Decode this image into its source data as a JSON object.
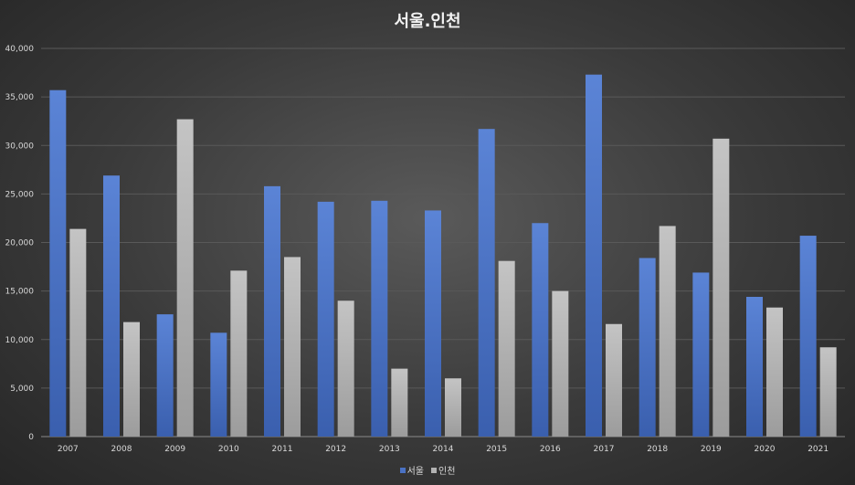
{
  "chart_data": {
    "type": "bar",
    "title": "서울.인천",
    "categories": [
      "2007",
      "2008",
      "2009",
      "2010",
      "2011",
      "2012",
      "2013",
      "2014",
      "2015",
      "2016",
      "2017",
      "2018",
      "2019",
      "2020",
      "2021"
    ],
    "series": [
      {
        "name": "서울",
        "color": "#4a72c4",
        "values": [
          35700,
          26900,
          12600,
          10700,
          25800,
          24200,
          24300,
          23300,
          31700,
          22000,
          37300,
          18400,
          16900,
          14400,
          20700
        ]
      },
      {
        "name": "인천",
        "color": "#b3b3b3",
        "values": [
          21400,
          11800,
          32700,
          17100,
          18500,
          14000,
          7000,
          6000,
          18100,
          15000,
          11600,
          21700,
          30700,
          13300,
          9200
        ]
      }
    ],
    "ylim": [
      0,
      40000
    ],
    "yticks": [
      "0",
      "5,000",
      "10,000",
      "15,000",
      "20,000",
      "25,000",
      "30,000",
      "35,000",
      "40,000"
    ],
    "grid": true,
    "legend_position": "bottom"
  }
}
